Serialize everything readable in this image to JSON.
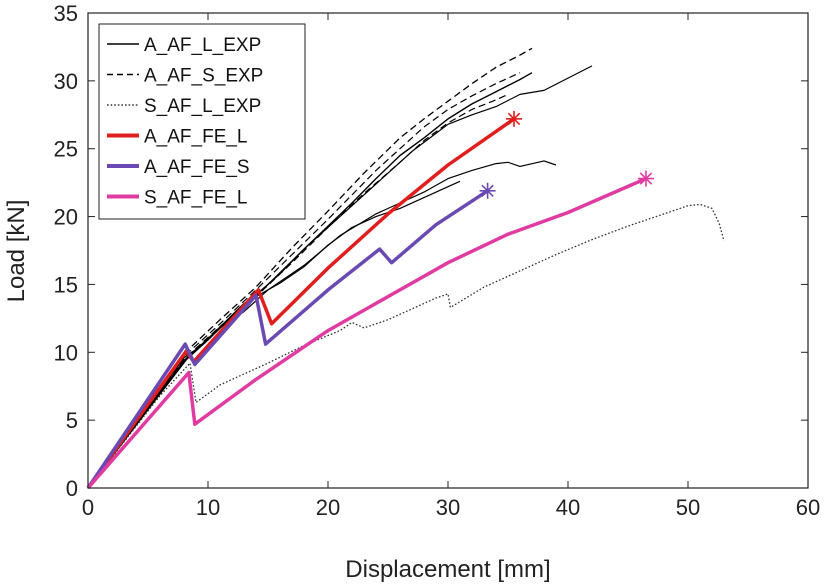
{
  "chart_data": {
    "type": "line",
    "xlabel": "Displacement [mm]",
    "ylabel": "Load [kN]",
    "xlim": [
      0,
      60
    ],
    "ylim": [
      0,
      35
    ],
    "xticks": [
      0,
      10,
      20,
      30,
      40,
      50,
      60
    ],
    "yticks": [
      0,
      5,
      10,
      15,
      20,
      25,
      30,
      35
    ],
    "grid": false,
    "legend_position": "top-left",
    "series": [
      {
        "name": "A_AF_L_EXP",
        "color": "#000000",
        "style": "solid",
        "width": 1.4,
        "legend": true,
        "points": [
          [
            0,
            0
          ],
          [
            8,
            9.6
          ],
          [
            9,
            10.2
          ],
          [
            12,
            12.6
          ],
          [
            14,
            14.2
          ],
          [
            16,
            15.8
          ],
          [
            18,
            17.6
          ],
          [
            20,
            19.3
          ],
          [
            22,
            21
          ],
          [
            24,
            22.8
          ],
          [
            26,
            24.5
          ],
          [
            28,
            25.8
          ],
          [
            30,
            27.2
          ],
          [
            32,
            28.3
          ],
          [
            34,
            29.2
          ],
          [
            36,
            30.1
          ],
          [
            37,
            30.6
          ]
        ]
      },
      {
        "name": "A_AF_L_EXP",
        "color": "#000000",
        "style": "solid",
        "width": 1.2,
        "legend": false,
        "points": [
          [
            0,
            0
          ],
          [
            8,
            9.3
          ],
          [
            10,
            10.9
          ],
          [
            13,
            13.5
          ],
          [
            15,
            15
          ],
          [
            18,
            17.6
          ],
          [
            21,
            20
          ],
          [
            24,
            22.4
          ],
          [
            27,
            24.8
          ],
          [
            30,
            26.8
          ],
          [
            32,
            27.5
          ],
          [
            34,
            28.1
          ],
          [
            36,
            29
          ],
          [
            38,
            29.3
          ],
          [
            40,
            30.2
          ],
          [
            42,
            31.1
          ]
        ]
      },
      {
        "name": "A_AF_L_EXP",
        "color": "#000000",
        "style": "solid",
        "width": 1.2,
        "legend": false,
        "points": [
          [
            0,
            0
          ],
          [
            8.5,
            9.8
          ],
          [
            11,
            11.8
          ],
          [
            13,
            13
          ],
          [
            15,
            14.6
          ],
          [
            18,
            16.4
          ],
          [
            21,
            18.6
          ],
          [
            24,
            20.2
          ],
          [
            26,
            21
          ],
          [
            28,
            21.8
          ],
          [
            30,
            22.8
          ],
          [
            32,
            23.4
          ],
          [
            34,
            23.9
          ],
          [
            35,
            24
          ],
          [
            36,
            23.7
          ],
          [
            38,
            24.1
          ],
          [
            39,
            23.8
          ]
        ]
      },
      {
        "name": "A_AF_L_EXP",
        "color": "#000000",
        "style": "solid",
        "width": 1.2,
        "legend": false,
        "points": [
          [
            0,
            0
          ],
          [
            8,
            9.4
          ],
          [
            10,
            11
          ],
          [
            13,
            13.6
          ],
          [
            15,
            14.6
          ],
          [
            16,
            15.1
          ],
          [
            18,
            16.3
          ],
          [
            20,
            17.9
          ],
          [
            22,
            19.2
          ],
          [
            24,
            20
          ],
          [
            26,
            20.6
          ],
          [
            28,
            21.4
          ],
          [
            30,
            22.2
          ],
          [
            31,
            22.6
          ]
        ]
      },
      {
        "name": "A_AF_S_EXP",
        "color": "#000000",
        "style": "dashed",
        "width": 1.3,
        "legend": true,
        "points": [
          [
            0,
            0
          ],
          [
            8,
            9.9
          ],
          [
            11,
            12.4
          ],
          [
            14,
            14.8
          ],
          [
            17,
            17.7
          ],
          [
            20,
            20.4
          ],
          [
            23,
            23.2
          ],
          [
            26,
            25.8
          ],
          [
            28,
            27.2
          ],
          [
            30,
            28.5
          ],
          [
            32,
            29.8
          ],
          [
            34,
            31
          ],
          [
            36,
            31.9
          ],
          [
            37,
            32.4
          ]
        ]
      },
      {
        "name": "A_AF_S_EXP",
        "color": "#000000",
        "style": "dashed",
        "width": 1.2,
        "legend": false,
        "points": [
          [
            0,
            0
          ],
          [
            8,
            9.7
          ],
          [
            11,
            12.1
          ],
          [
            14,
            14.6
          ],
          [
            17,
            17.2
          ],
          [
            20,
            19.8
          ],
          [
            22,
            21.6
          ],
          [
            24,
            23.4
          ],
          [
            26,
            25
          ],
          [
            28,
            26.6
          ],
          [
            30,
            27.9
          ],
          [
            32,
            28.9
          ],
          [
            34,
            29.8
          ],
          [
            36,
            30.6
          ]
        ]
      },
      {
        "name": "A_AF_S_EXP",
        "color": "#000000",
        "style": "dashed",
        "width": 1.2,
        "legend": false,
        "points": [
          [
            0,
            0
          ],
          [
            8,
            9.5
          ],
          [
            11,
            11.9
          ],
          [
            14,
            14.1
          ],
          [
            17,
            16.6
          ],
          [
            20,
            19.2
          ],
          [
            23,
            21.7
          ],
          [
            26,
            24
          ],
          [
            28,
            25.6
          ],
          [
            30,
            26.9
          ],
          [
            32,
            27.9
          ],
          [
            34,
            28.6
          ],
          [
            35,
            29
          ]
        ]
      },
      {
        "name": "S_AF_L_EXP",
        "color": "#333333",
        "style": "dotted",
        "width": 1.3,
        "legend": true,
        "points": [
          [
            0,
            0
          ],
          [
            6,
            6.8
          ],
          [
            8.5,
            9.2
          ],
          [
            9,
            6.3
          ],
          [
            11,
            7.6
          ],
          [
            13,
            8.4
          ],
          [
            15,
            9.2
          ],
          [
            18,
            10.5
          ],
          [
            21,
            11.6
          ],
          [
            22,
            12.2
          ],
          [
            23,
            11.8
          ],
          [
            25,
            12.4
          ],
          [
            27,
            13.2
          ],
          [
            29,
            14
          ],
          [
            30,
            14.3
          ],
          [
            30.2,
            13.3
          ],
          [
            33,
            14.8
          ],
          [
            36,
            16
          ],
          [
            39,
            17.2
          ],
          [
            42,
            18.3
          ],
          [
            45,
            19.3
          ],
          [
            48,
            20.2
          ],
          [
            50,
            20.8
          ],
          [
            51,
            20.9
          ],
          [
            52,
            20.6
          ],
          [
            52.6,
            19.5
          ],
          [
            53,
            18.2
          ]
        ]
      },
      {
        "name": "A_AF_FE_L",
        "color": "#e01e1e",
        "style": "solid",
        "width": 3.5,
        "legend": true,
        "end_marker": true,
        "points": [
          [
            0,
            0
          ],
          [
            8.2,
            10.1
          ],
          [
            8.8,
            9.3
          ],
          [
            14.2,
            14.6
          ],
          [
            15.3,
            12.1
          ],
          [
            20,
            16.2
          ],
          [
            25,
            20.2
          ],
          [
            30,
            23.8
          ],
          [
            35.5,
            27.2
          ]
        ]
      },
      {
        "name": "A_AF_FE_S",
        "color": "#6a4ab2",
        "style": "solid",
        "width": 3.5,
        "legend": true,
        "end_marker": true,
        "points": [
          [
            0,
            0
          ],
          [
            8.1,
            10.6
          ],
          [
            8.9,
            9.1
          ],
          [
            14,
            14.2
          ],
          [
            14.8,
            10.6
          ],
          [
            20,
            14.6
          ],
          [
            24.3,
            17.6
          ],
          [
            25.3,
            16.6
          ],
          [
            29,
            19.4
          ],
          [
            33.3,
            21.9
          ]
        ]
      },
      {
        "name": "S_AF_FE_L",
        "color": "#e03ba0",
        "style": "solid",
        "width": 3.5,
        "legend": true,
        "end_marker": true,
        "points": [
          [
            0,
            0
          ],
          [
            8.4,
            8.5
          ],
          [
            8.9,
            4.7
          ],
          [
            14,
            8
          ],
          [
            20,
            11.6
          ],
          [
            25,
            14.1
          ],
          [
            30,
            16.6
          ],
          [
            35,
            18.7
          ],
          [
            40,
            20.3
          ],
          [
            46.5,
            22.8
          ]
        ]
      }
    ]
  }
}
